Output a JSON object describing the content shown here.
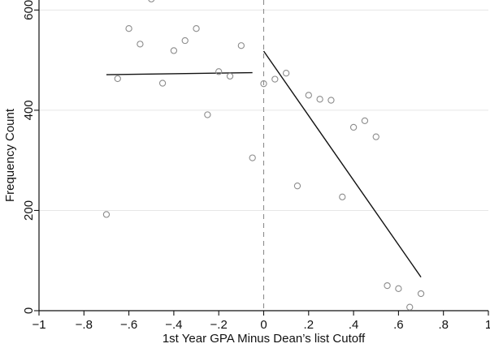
{
  "chart_data": {
    "type": "scatter",
    "title": "",
    "xlabel": "1st Year GPA Minus Dean’s list Cutoff",
    "ylabel": "Frequency Count",
    "xlim": [
      -1,
      1
    ],
    "ylim": [
      0,
      620
    ],
    "x_ticks": [
      -1,
      -0.8,
      -0.6,
      -0.4,
      -0.2,
      0,
      0.2,
      0.4,
      0.6,
      0.8,
      1
    ],
    "x_tick_labels": [
      "−1",
      "−.8",
      "−.6",
      "−.4",
      "−.2",
      "0",
      ".2",
      ".4",
      ".6",
      ".8",
      "1"
    ],
    "y_ticks": [
      0,
      200,
      400,
      600
    ],
    "y_tick_labels": [
      "0",
      "200",
      "400",
      "600"
    ],
    "grid": "horizontal",
    "cutoff_line_x": 0,
    "points": [
      {
        "x": -0.7,
        "y": 192
      },
      {
        "x": -0.65,
        "y": 463
      },
      {
        "x": -0.6,
        "y": 563
      },
      {
        "x": -0.55,
        "y": 532
      },
      {
        "x": -0.5,
        "y": 622
      },
      {
        "x": -0.45,
        "y": 454
      },
      {
        "x": -0.4,
        "y": 519
      },
      {
        "x": -0.35,
        "y": 539
      },
      {
        "x": -0.3,
        "y": 563
      },
      {
        "x": -0.25,
        "y": 391
      },
      {
        "x": -0.2,
        "y": 477
      },
      {
        "x": -0.15,
        "y": 468
      },
      {
        "x": -0.1,
        "y": 529
      },
      {
        "x": -0.05,
        "y": 305
      },
      {
        "x": 0.0,
        "y": 453
      },
      {
        "x": 0.05,
        "y": 462
      },
      {
        "x": 0.1,
        "y": 474
      },
      {
        "x": 0.15,
        "y": 249
      },
      {
        "x": 0.2,
        "y": 430
      },
      {
        "x": 0.25,
        "y": 422
      },
      {
        "x": 0.3,
        "y": 420
      },
      {
        "x": 0.35,
        "y": 227
      },
      {
        "x": 0.4,
        "y": 366
      },
      {
        "x": 0.45,
        "y": 379
      },
      {
        "x": 0.5,
        "y": 347
      },
      {
        "x": 0.55,
        "y": 50
      },
      {
        "x": 0.6,
        "y": 44
      },
      {
        "x": 0.65,
        "y": 7
      },
      {
        "x": 0.7,
        "y": 34
      }
    ],
    "fit_lines": [
      {
        "x": [
          -0.7,
          -0.05
        ],
        "y": [
          471,
          475
        ]
      },
      {
        "x": [
          0.0,
          0.7
        ],
        "y": [
          518,
          67
        ]
      }
    ],
    "colors": {
      "marker": "#8c8c8c",
      "fit_line": "#111111",
      "cutoff_line": "#8c8c8c",
      "grid": "#e6e6e6",
      "axis": "#111111"
    }
  }
}
